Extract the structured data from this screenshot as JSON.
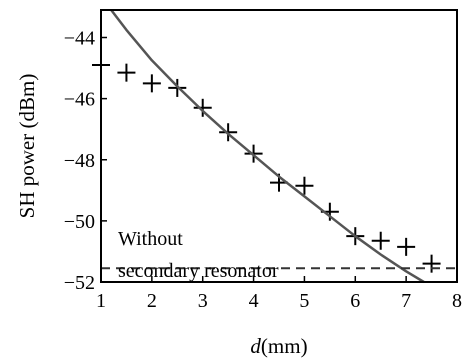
{
  "chart_data": {
    "type": "scatter",
    "title": "",
    "xlabel_prefix": "d",
    "xlabel_suffix": "(mm)",
    "ylabel": "SH power (dBm)",
    "xlim": [
      1,
      8
    ],
    "ylim": [
      -52,
      -43.1
    ],
    "x_ticks": [
      "1",
      "2",
      "3",
      "4",
      "5",
      "6",
      "7",
      "8"
    ],
    "y_ticks": [
      "-52",
      "-50",
      "-48",
      "-46",
      "-44"
    ],
    "grid": false,
    "series": [
      {
        "kind": "markers",
        "marker": "plus",
        "color": "#000000",
        "x": [
          1.0,
          1.5,
          2.0,
          2.5,
          3.0,
          3.5,
          4.0,
          4.5,
          5.0,
          5.5,
          6.0,
          6.5,
          7.0,
          7.5
        ],
        "y": [
          -44.9,
          -45.15,
          -45.5,
          -45.65,
          -46.3,
          -47.1,
          -47.8,
          -48.75,
          -48.85,
          -49.7,
          -50.5,
          -50.65,
          -50.85,
          -51.4
        ]
      },
      {
        "kind": "fit-line",
        "color": "#555555",
        "x": [
          1.2,
          1.5,
          2.0,
          2.5,
          3.0,
          3.5,
          4.0,
          4.5,
          5.0,
          5.5,
          6.0,
          6.5,
          7.0,
          7.35
        ],
        "y": [
          -43.1,
          -43.75,
          -44.75,
          -45.6,
          -46.4,
          -47.15,
          -47.85,
          -48.55,
          -49.2,
          -49.85,
          -50.5,
          -51.1,
          -51.65,
          -52.0
        ]
      },
      {
        "kind": "reference-dashed",
        "color": "#333333",
        "y": -51.55
      }
    ],
    "annotation": {
      "line1": "Without",
      "line2": "secondary resonator"
    }
  }
}
